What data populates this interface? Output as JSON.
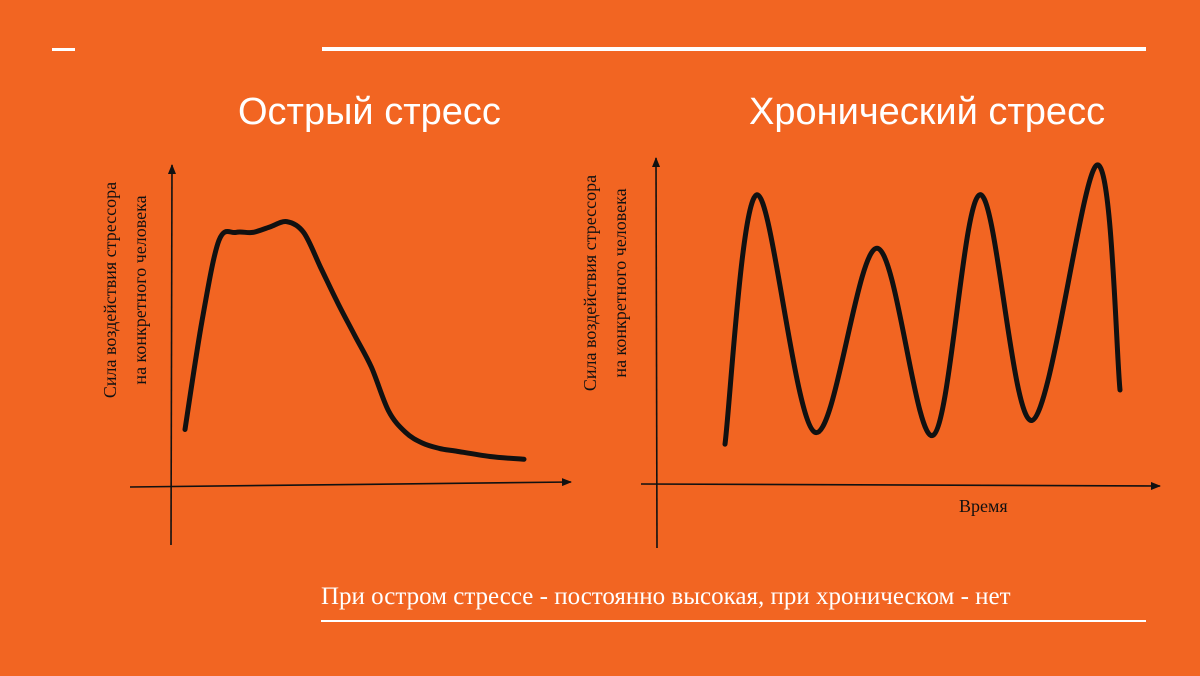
{
  "theme": {
    "background": "#F26522",
    "line_color": "#111111",
    "accent": "#FFFFFF"
  },
  "header": {
    "dash_text": "—"
  },
  "panels": [
    {
      "title": "Острый стресс",
      "ylabel_line1": "Сила воздействия стрессора",
      "ylabel_line2": "на конкретного человека",
      "xlabel": ""
    },
    {
      "title": "Хронический стресс",
      "ylabel_line1": "Сила воздействия стрессора",
      "ylabel_line2": "на конкретного человека",
      "xlabel": "Время"
    }
  ],
  "footer": {
    "note": "При остром стрессе - постоянно высокая, при хроническом - нет"
  },
  "chart_data": [
    {
      "type": "line",
      "title": "Острый стресс",
      "ylabel": "Сила воздействия стрессора на конкретного человека",
      "xlabel": "",
      "x": [
        0,
        0.5,
        1.0,
        1.5,
        2.0,
        2.5,
        3.0,
        3.5,
        4.0,
        4.5,
        5.0,
        5.5,
        6.0,
        6.5,
        7.0,
        7.5,
        8.0,
        9.0,
        10.0
      ],
      "values": [
        0.15,
        0.55,
        0.85,
        0.88,
        0.88,
        0.9,
        0.92,
        0.88,
        0.75,
        0.62,
        0.5,
        0.38,
        0.22,
        0.14,
        0.1,
        0.08,
        0.07,
        0.05,
        0.04
      ],
      "ylim": [
        0,
        1
      ],
      "xlim": [
        0,
        10
      ]
    },
    {
      "type": "line",
      "title": "Хронический стресс",
      "ylabel": "Сила воздействия стрессора на конкретного человека",
      "xlabel": "Время",
      "x": [
        0,
        0.8,
        1.6,
        2.4,
        3.2,
        4.0,
        4.8,
        5.6,
        6.4,
        7.2,
        8.0
      ],
      "values": [
        0.06,
        0.9,
        0.1,
        0.72,
        0.09,
        0.9,
        0.14,
        1.0,
        0.3,
        0.3,
        0.3
      ],
      "ylim": [
        0,
        1
      ],
      "xlim": [
        0,
        8
      ]
    }
  ]
}
